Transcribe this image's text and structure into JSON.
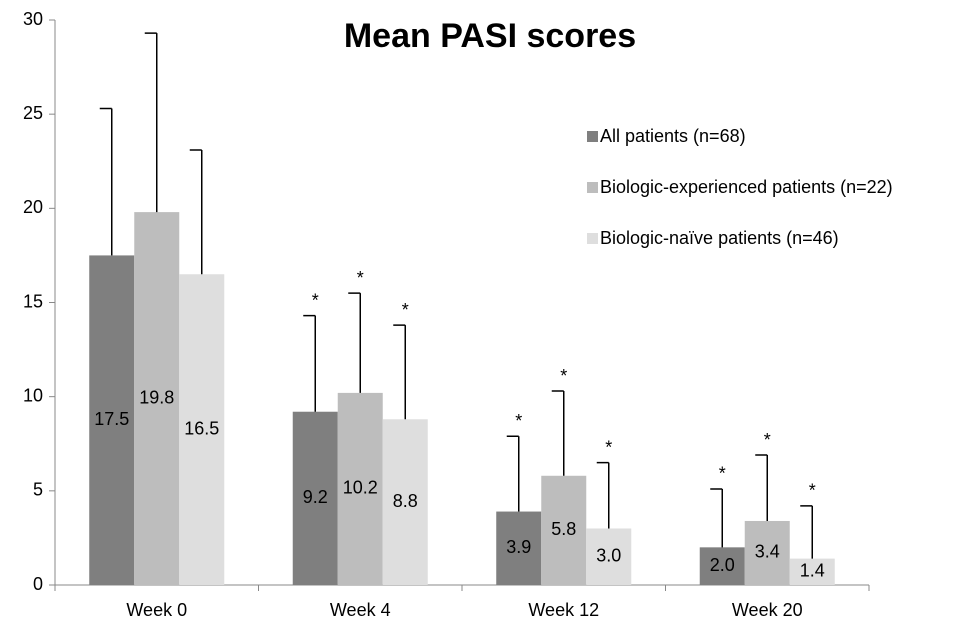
{
  "chart_data": {
    "type": "bar",
    "title": "Mean PASI scores",
    "categories": [
      "Week 0",
      "Week 4",
      "Week 12",
      "Week 20"
    ],
    "series": [
      {
        "name": "All patients (n=68)",
        "color": "#7f7f7f",
        "values": [
          17.5,
          9.2,
          3.9,
          2.0
        ],
        "value_labels": [
          "17.5",
          "9.2",
          "3.9",
          "2.0"
        ],
        "errors": [
          7.8,
          5.1,
          4.0,
          3.1
        ],
        "annotations": [
          null,
          "*",
          "*",
          "*"
        ]
      },
      {
        "name": "Biologic-experienced patients (n=22)",
        "color": "#bdbdbd",
        "values": [
          19.8,
          10.2,
          5.8,
          3.4
        ],
        "value_labels": [
          "19.8",
          "10.2",
          "5.8",
          "3.4"
        ],
        "errors": [
          9.5,
          5.3,
          4.5,
          3.5
        ],
        "annotations": [
          null,
          "*",
          "*",
          "*"
        ]
      },
      {
        "name": "Biologic-naïve patients (n=46)",
        "color": "#dedede",
        "values": [
          16.5,
          8.8,
          3.0,
          1.4
        ],
        "value_labels": [
          "16.5",
          "8.8",
          "3.0",
          "1.4"
        ],
        "errors": [
          6.6,
          5.0,
          3.5,
          2.8
        ],
        "annotations": [
          null,
          "*",
          "*",
          "*"
        ]
      }
    ],
    "ylim": [
      0,
      30
    ],
    "yticks": [
      0,
      5,
      10,
      15,
      20,
      25,
      30
    ],
    "grid": false,
    "legend": "right"
  }
}
